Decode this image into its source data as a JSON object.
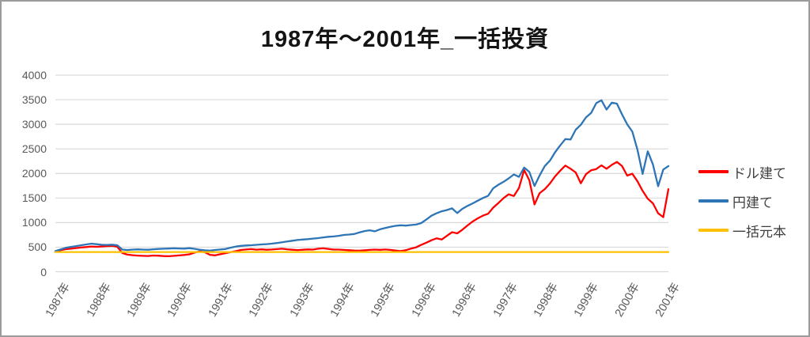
{
  "title": {
    "text": "1987年～2001年_一括投資"
  },
  "frame": {
    "border_color": "#9b9b9b",
    "background": "#ffffff"
  },
  "chart_data": {
    "type": "line",
    "title": "1987年～2001年_一括投資",
    "x_tick_labels": [
      "1987年",
      "1988年",
      "1989年",
      "1990年",
      "1991年",
      "1992年",
      "1993年",
      "1994年",
      "1995年",
      "1996年",
      "1996年",
      "1997年",
      "1998年",
      "1999年",
      "2000年",
      "2001年"
    ],
    "y_ticks": [
      0,
      500,
      1000,
      1500,
      2000,
      2500,
      3000,
      3500,
      4000
    ],
    "ylim": [
      0,
      4000
    ],
    "grid": "horizontal",
    "gridline_color": "#d9d9d9",
    "axis_text_color": "#595959",
    "legend_position": "right",
    "x_note": "points uniformly spaced across 1987–2001 time axis",
    "series": [
      {
        "name": "ドル建て",
        "key": "usd",
        "color": "#ff0000",
        "values": [
          408,
          438,
          458,
          470,
          482,
          494,
          503,
          513,
          507,
          514,
          521,
          527,
          508,
          380,
          348,
          336,
          328,
          324,
          320,
          330,
          326,
          319,
          316,
          323,
          331,
          341,
          354,
          388,
          413,
          398,
          345,
          334,
          356,
          377,
          398,
          418,
          442,
          452,
          460,
          449,
          456,
          447,
          452,
          461,
          468,
          455,
          447,
          441,
          448,
          454,
          451,
          468,
          477,
          464,
          451,
          450,
          444,
          438,
          432,
          428,
          436,
          444,
          450,
          446,
          452,
          444,
          432,
          420,
          438,
          470,
          495,
          545,
          590,
          640,
          680,
          655,
          730,
          805,
          780,
          855,
          942,
          1022,
          1086,
          1142,
          1180,
          1305,
          1398,
          1498,
          1576,
          1540,
          1705,
          2070,
          1860,
          1370,
          1600,
          1680,
          1795,
          1940,
          2055,
          2160,
          2095,
          2020,
          1800,
          1985,
          2065,
          2090,
          2165,
          2095,
          2175,
          2235,
          2150,
          1955,
          1995,
          1840,
          1645,
          1485,
          1390,
          1190,
          1110,
          1680
        ]
      },
      {
        "name": "円建て",
        "key": "jpy",
        "color": "#2e75b6",
        "values": [
          420,
          452,
          486,
          506,
          522,
          540,
          556,
          572,
          560,
          549,
          546,
          551,
          540,
          450,
          443,
          450,
          456,
          451,
          448,
          457,
          463,
          468,
          471,
          477,
          474,
          470,
          479,
          466,
          449,
          436,
          430,
          443,
          452,
          462,
          489,
          512,
          526,
          534,
          540,
          548,
          555,
          561,
          572,
          585,
          600,
          617,
          631,
          646,
          655,
          663,
          674,
          684,
          698,
          712,
          718,
          731,
          748,
          756,
          768,
          799,
          828,
          843,
          822,
          862,
          888,
          912,
          933,
          945,
          938,
          950,
          960,
          990,
          1060,
          1140,
          1190,
          1230,
          1255,
          1290,
          1195,
          1280,
          1340,
          1390,
          1445,
          1500,
          1545,
          1700,
          1770,
          1830,
          1900,
          1980,
          1930,
          2120,
          2030,
          1745,
          1960,
          2150,
          2260,
          2430,
          2570,
          2700,
          2690,
          2890,
          2990,
          3140,
          3230,
          3430,
          3490,
          3300,
          3440,
          3420,
          3200,
          3000,
          2850,
          2480,
          1990,
          2450,
          2180,
          1740,
          2080,
          2150
        ]
      },
      {
        "name": "一括元本",
        "key": "principal",
        "color": "#ffc000",
        "values": [
          400,
          400
        ]
      }
    ]
  }
}
